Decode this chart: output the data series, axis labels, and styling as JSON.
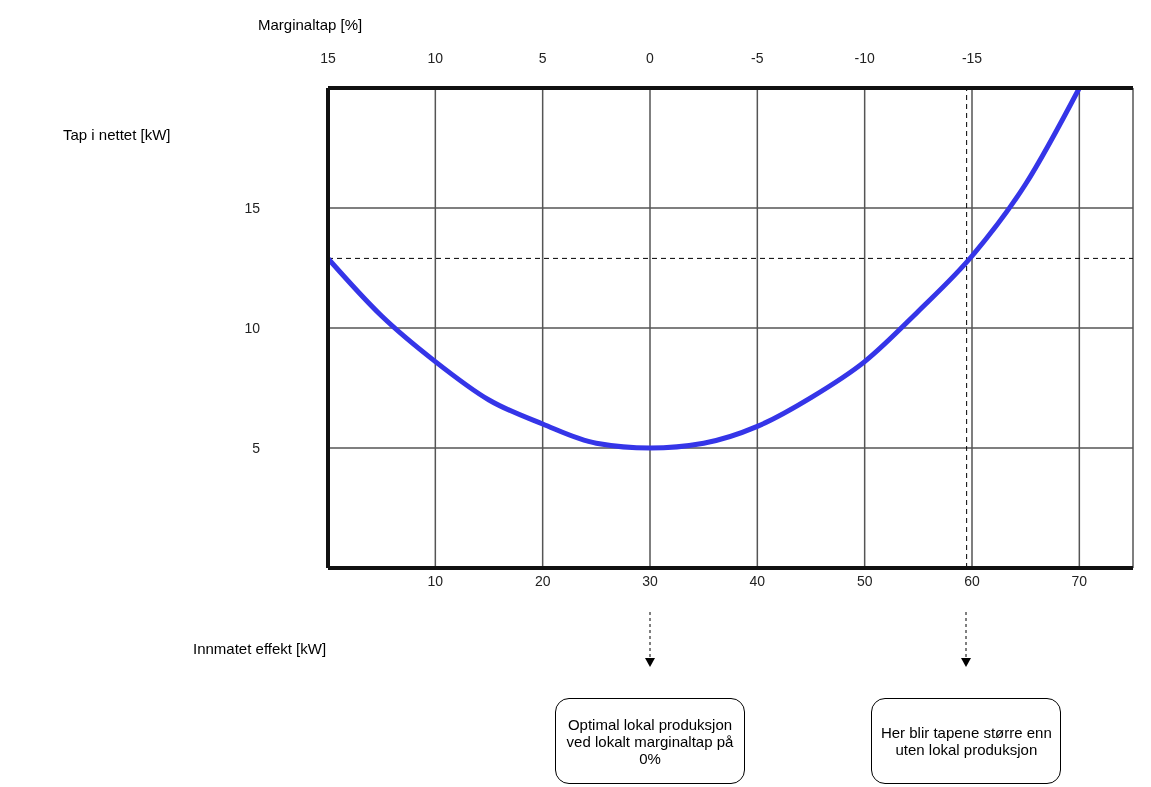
{
  "chart_data": {
    "type": "line",
    "xlabel": "Innmatet effekt [kW]",
    "ylabel": "Tap i nettet [kW]",
    "x2label": "Marginaltap [%]",
    "xlim": [
      0,
      75
    ],
    "xticks": [
      10,
      20,
      30,
      40,
      50,
      60,
      70
    ],
    "x2lim": [
      15,
      -22.5
    ],
    "x2ticks": [
      15,
      10,
      5,
      0,
      -5,
      -10,
      -15
    ],
    "ylim": [
      0,
      20
    ],
    "yticks": [
      5,
      10,
      15
    ],
    "grid": true,
    "marker": "none",
    "line_style": "solid",
    "series": [
      {
        "color": "#3535e8",
        "x": [
          0,
          5,
          10,
          15,
          20,
          25,
          30,
          35,
          40,
          45,
          50,
          55,
          60,
          65,
          70
        ],
        "values": [
          12.9,
          10.5,
          8.6,
          7.0,
          6.0,
          5.2,
          5.0,
          5.2,
          5.9,
          7.1,
          8.6,
          10.7,
          13.0,
          16.0,
          20.0
        ]
      }
    ],
    "ref_lines": [
      {
        "axis": "y",
        "value": 12.9,
        "line_style": "dashed",
        "color": "#000000"
      },
      {
        "axis": "x",
        "value": 59.5,
        "line_style": "dashed",
        "color": "#000000"
      }
    ],
    "annotations": [
      "Optimal lokal produksjon ved lokalt marginaltap på 0%",
      "Her blir tapene større enn uten lokal produksjon"
    ]
  }
}
